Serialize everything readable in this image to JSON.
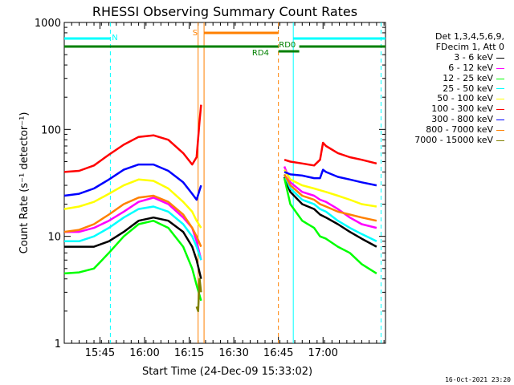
{
  "chart_data": {
    "type": "line",
    "title": "RHESSI Observing Summary Count Rates",
    "xlabel": "Start Time (24-Dec-09 15:33:02)",
    "ylabel": "Count Rate (s⁻¹ detector⁻¹)",
    "yscale": "log",
    "ylim": [
      1,
      1000
    ],
    "xlim_minutes": [
      0,
      108
    ],
    "x_ticks": [
      {
        "label": "15:45",
        "minute": 12
      },
      {
        "label": "16:00",
        "minute": 27
      },
      {
        "label": "16:15",
        "minute": 42
      },
      {
        "label": "16:30",
        "minute": 57
      },
      {
        "label": "16:45",
        "minute": 72
      },
      {
        "label": "17:00",
        "minute": 87
      }
    ],
    "y_ticks": [
      {
        "label": "1",
        "value": 1
      },
      {
        "label": "10",
        "value": 10
      },
      {
        "label": "100",
        "value": 100
      },
      {
        "label": "1000",
        "value": 1000
      }
    ],
    "series": [
      {
        "name": "3 - 6 keV",
        "color": "#000000",
        "x": [
          0,
          5,
          10,
          15,
          20,
          25,
          30,
          35,
          40,
          43,
          44.5,
          46,
          62,
          74,
          76,
          80,
          84,
          86,
          88,
          92,
          96,
          100,
          105
        ],
        "y": [
          8,
          8,
          8,
          9,
          11,
          14,
          15,
          14,
          11,
          8,
          6,
          4,
          null,
          36,
          26,
          20,
          18,
          16,
          15,
          13,
          11,
          9.5,
          8
        ]
      },
      {
        "name": "6 - 12 keV",
        "color": "#ff00ff",
        "x": [
          0,
          5,
          10,
          15,
          20,
          25,
          30,
          35,
          40,
          43,
          44.5,
          46,
          62,
          74,
          76,
          80,
          84,
          86,
          88,
          92,
          96,
          100,
          105
        ],
        "y": [
          11,
          11,
          12,
          14,
          17,
          21,
          23,
          20,
          15,
          12,
          9,
          6,
          null,
          45,
          32,
          26,
          24,
          22,
          21,
          18,
          15,
          13,
          12
        ]
      },
      {
        "name": "12 - 25 keV",
        "color": "#00ff00",
        "x": [
          0,
          5,
          10,
          15,
          20,
          25,
          30,
          35,
          40,
          43,
          44.5,
          46,
          62,
          74,
          76,
          80,
          84,
          86,
          88,
          92,
          96,
          100,
          105
        ],
        "y": [
          4.5,
          4.6,
          5,
          7,
          10,
          13,
          14,
          12,
          8,
          5,
          3.5,
          2.5,
          null,
          35,
          20,
          14,
          12,
          10,
          9.5,
          8,
          7,
          5.5,
          4.5
        ]
      },
      {
        "name": "25 - 50 keV",
        "color": "#00ffff",
        "x": [
          0,
          5,
          10,
          15,
          20,
          25,
          30,
          35,
          40,
          43,
          44.5,
          46,
          62,
          74,
          76,
          80,
          84,
          86,
          88,
          92,
          96,
          100,
          105
        ],
        "y": [
          9,
          9,
          10,
          12,
          15,
          18,
          19,
          17,
          13,
          10,
          8,
          6,
          null,
          38,
          28,
          22,
          20,
          18,
          17,
          14,
          12,
          10.5,
          9
        ]
      },
      {
        "name": "50 - 100 keV",
        "color": "#ffff00",
        "x": [
          0,
          5,
          10,
          15,
          20,
          25,
          30,
          35,
          40,
          43,
          44.5,
          46,
          62,
          74,
          76,
          80,
          84,
          86,
          88,
          92,
          96,
          100,
          105
        ],
        "y": [
          18,
          19,
          21,
          25,
          30,
          34,
          33,
          28,
          21,
          17,
          14,
          12,
          null,
          42,
          34,
          30,
          28,
          27,
          26,
          24,
          22,
          20,
          19
        ]
      },
      {
        "name": "100 - 300 keV",
        "color": "#ff0000",
        "x": [
          0,
          5,
          10,
          15,
          20,
          25,
          30,
          35,
          40,
          43,
          44.5,
          45.5,
          46,
          62,
          74,
          76,
          80,
          84,
          86,
          87,
          88,
          92,
          96,
          100,
          105
        ],
        "y": [
          40,
          41,
          46,
          58,
          72,
          85,
          88,
          80,
          60,
          47,
          55,
          120,
          170,
          null,
          52,
          50,
          48,
          46,
          52,
          75,
          70,
          60,
          55,
          52,
          48
        ]
      },
      {
        "name": "300 - 800 keV",
        "color": "#0000ff",
        "x": [
          0,
          5,
          10,
          15,
          20,
          25,
          30,
          35,
          40,
          43,
          44.5,
          46,
          62,
          74,
          76,
          80,
          84,
          86,
          87,
          88,
          92,
          96,
          100,
          105
        ],
        "y": [
          24,
          25,
          28,
          34,
          42,
          47,
          47,
          41,
          32,
          25,
          22,
          30,
          null,
          40,
          38,
          37,
          35,
          35,
          42,
          40,
          36,
          34,
          32,
          30
        ]
      },
      {
        "name": "800 - 7000 keV",
        "color": "#ff8000",
        "x": [
          0,
          5,
          10,
          15,
          20,
          25,
          30,
          35,
          40,
          43,
          44.5,
          46,
          62,
          74,
          76,
          80,
          84,
          86,
          88,
          92,
          96,
          100,
          105
        ],
        "y": [
          11,
          11.5,
          13,
          16,
          20,
          23,
          24,
          21,
          16,
          12,
          10,
          8,
          null,
          38,
          30,
          24,
          22,
          20,
          19,
          17,
          16,
          15,
          14
        ]
      },
      {
        "name": "7000 - 15000 keV",
        "color": "#808000",
        "x": [
          44.5,
          45,
          45.5,
          46
        ],
        "y": [
          2.2,
          2,
          4,
          3
        ]
      }
    ],
    "segment_markers": [
      {
        "label": "N",
        "color": "#00ffff",
        "start_minute": 0,
        "end_minute": 15.5,
        "level": 0
      },
      {
        "label": "N",
        "color": "#00ffff",
        "start_minute": 77,
        "end_minute": 108,
        "level": 0
      },
      {
        "label": "S",
        "color": "#ff8000",
        "start_minute": 47,
        "end_minute": 72,
        "level": 1
      },
      {
        "label": "RD0",
        "color": "#008000",
        "start_minute": 0,
        "end_minute": 72,
        "level": 2
      },
      {
        "label": "RD0",
        "color": "#008000",
        "start_minute": 79,
        "end_minute": 108,
        "level": 2
      },
      {
        "label": "RD4",
        "color": "#008000",
        "start_minute": 72,
        "end_minute": 79,
        "level": 3
      }
    ],
    "segment_labels": [
      {
        "text": "N",
        "color": "#00ffff",
        "minute": 17
      },
      {
        "text": "S",
        "color": "#ff8000",
        "minute": 44
      },
      {
        "text": "RD0",
        "color": "#008000",
        "minute": 75
      },
      {
        "text": "RD4",
        "color": "#008000",
        "minute": 66
      }
    ],
    "vertical_lines": [
      {
        "minute": 15.5,
        "color": "#00ffff",
        "style": "dashed"
      },
      {
        "minute": 45,
        "color": "#ff8000",
        "style": "solid"
      },
      {
        "minute": 47,
        "color": "#ff8000",
        "style": "solid"
      },
      {
        "minute": 72,
        "color": "#ff8000",
        "style": "dashed"
      },
      {
        "minute": 77,
        "color": "#00ffff",
        "style": "solid"
      },
      {
        "minute": 106.5,
        "color": "#00ffff",
        "style": "dashed"
      }
    ],
    "legend_header": [
      "Det 1,3,4,5,6,9,",
      "FDecim 1, Att 0"
    ]
  },
  "timestamp": "16-Oct-2021 23:20"
}
